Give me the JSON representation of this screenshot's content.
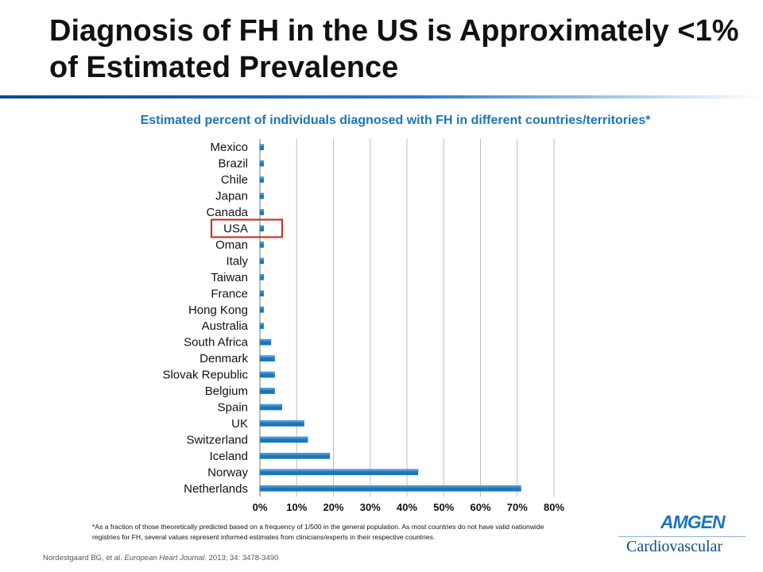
{
  "slide": {
    "title": "Diagnosis of FH in the US is Approximately <1% of Estimated Prevalence",
    "footnote": "*As a fraction of those theoretically predicted based on a frequency of 1/500 in the general population.  As most countries do not have valid nationwide registries for FH, several values represent informed estimates from clinicians/experts in their respective countries.",
    "citation_plain": "Nordestgaard BG, et al. ",
    "citation_journal": "European Heart Journal",
    "citation_rest": ". 2013; 34: 3478-3490",
    "logo_word": "AMGEN",
    "logo_sub": "Cardiovascular"
  },
  "colors": {
    "bar": "#1b75bb",
    "bar_light": "#6fb3e6",
    "highlight": "#c0392b",
    "title_text": "#1b75bb"
  },
  "chart_data": {
    "type": "bar",
    "orientation": "horizontal",
    "title": "Estimated percent of individuals diagnosed with FH in different countries/territories*",
    "categories": [
      "Mexico",
      "Brazil",
      "Chile",
      "Japan",
      "Canada",
      "USA",
      "Oman",
      "Italy",
      "Taiwan",
      "France",
      "Hong Kong",
      "Australia",
      "South Africa",
      "Denmark",
      "Slovak Republic",
      "Belgium",
      "Spain",
      "UK",
      "Switzerland",
      "Iceland",
      "Norway",
      "Netherlands"
    ],
    "values": [
      1,
      1,
      1,
      1,
      1,
      1,
      1,
      1,
      1,
      1,
      1,
      1,
      3,
      4,
      4,
      4,
      6,
      12,
      13,
      19,
      43,
      71
    ],
    "highlighted_category": "USA",
    "xlim": [
      0,
      80
    ],
    "xticks": [
      0,
      10,
      20,
      30,
      40,
      50,
      60,
      70,
      80
    ],
    "xtick_labels": [
      "0%",
      "10%",
      "20%",
      "30%",
      "40%",
      "50%",
      "60%",
      "70%",
      "80%"
    ],
    "xlabel": "",
    "ylabel": "",
    "grid": true,
    "legend": "none"
  }
}
